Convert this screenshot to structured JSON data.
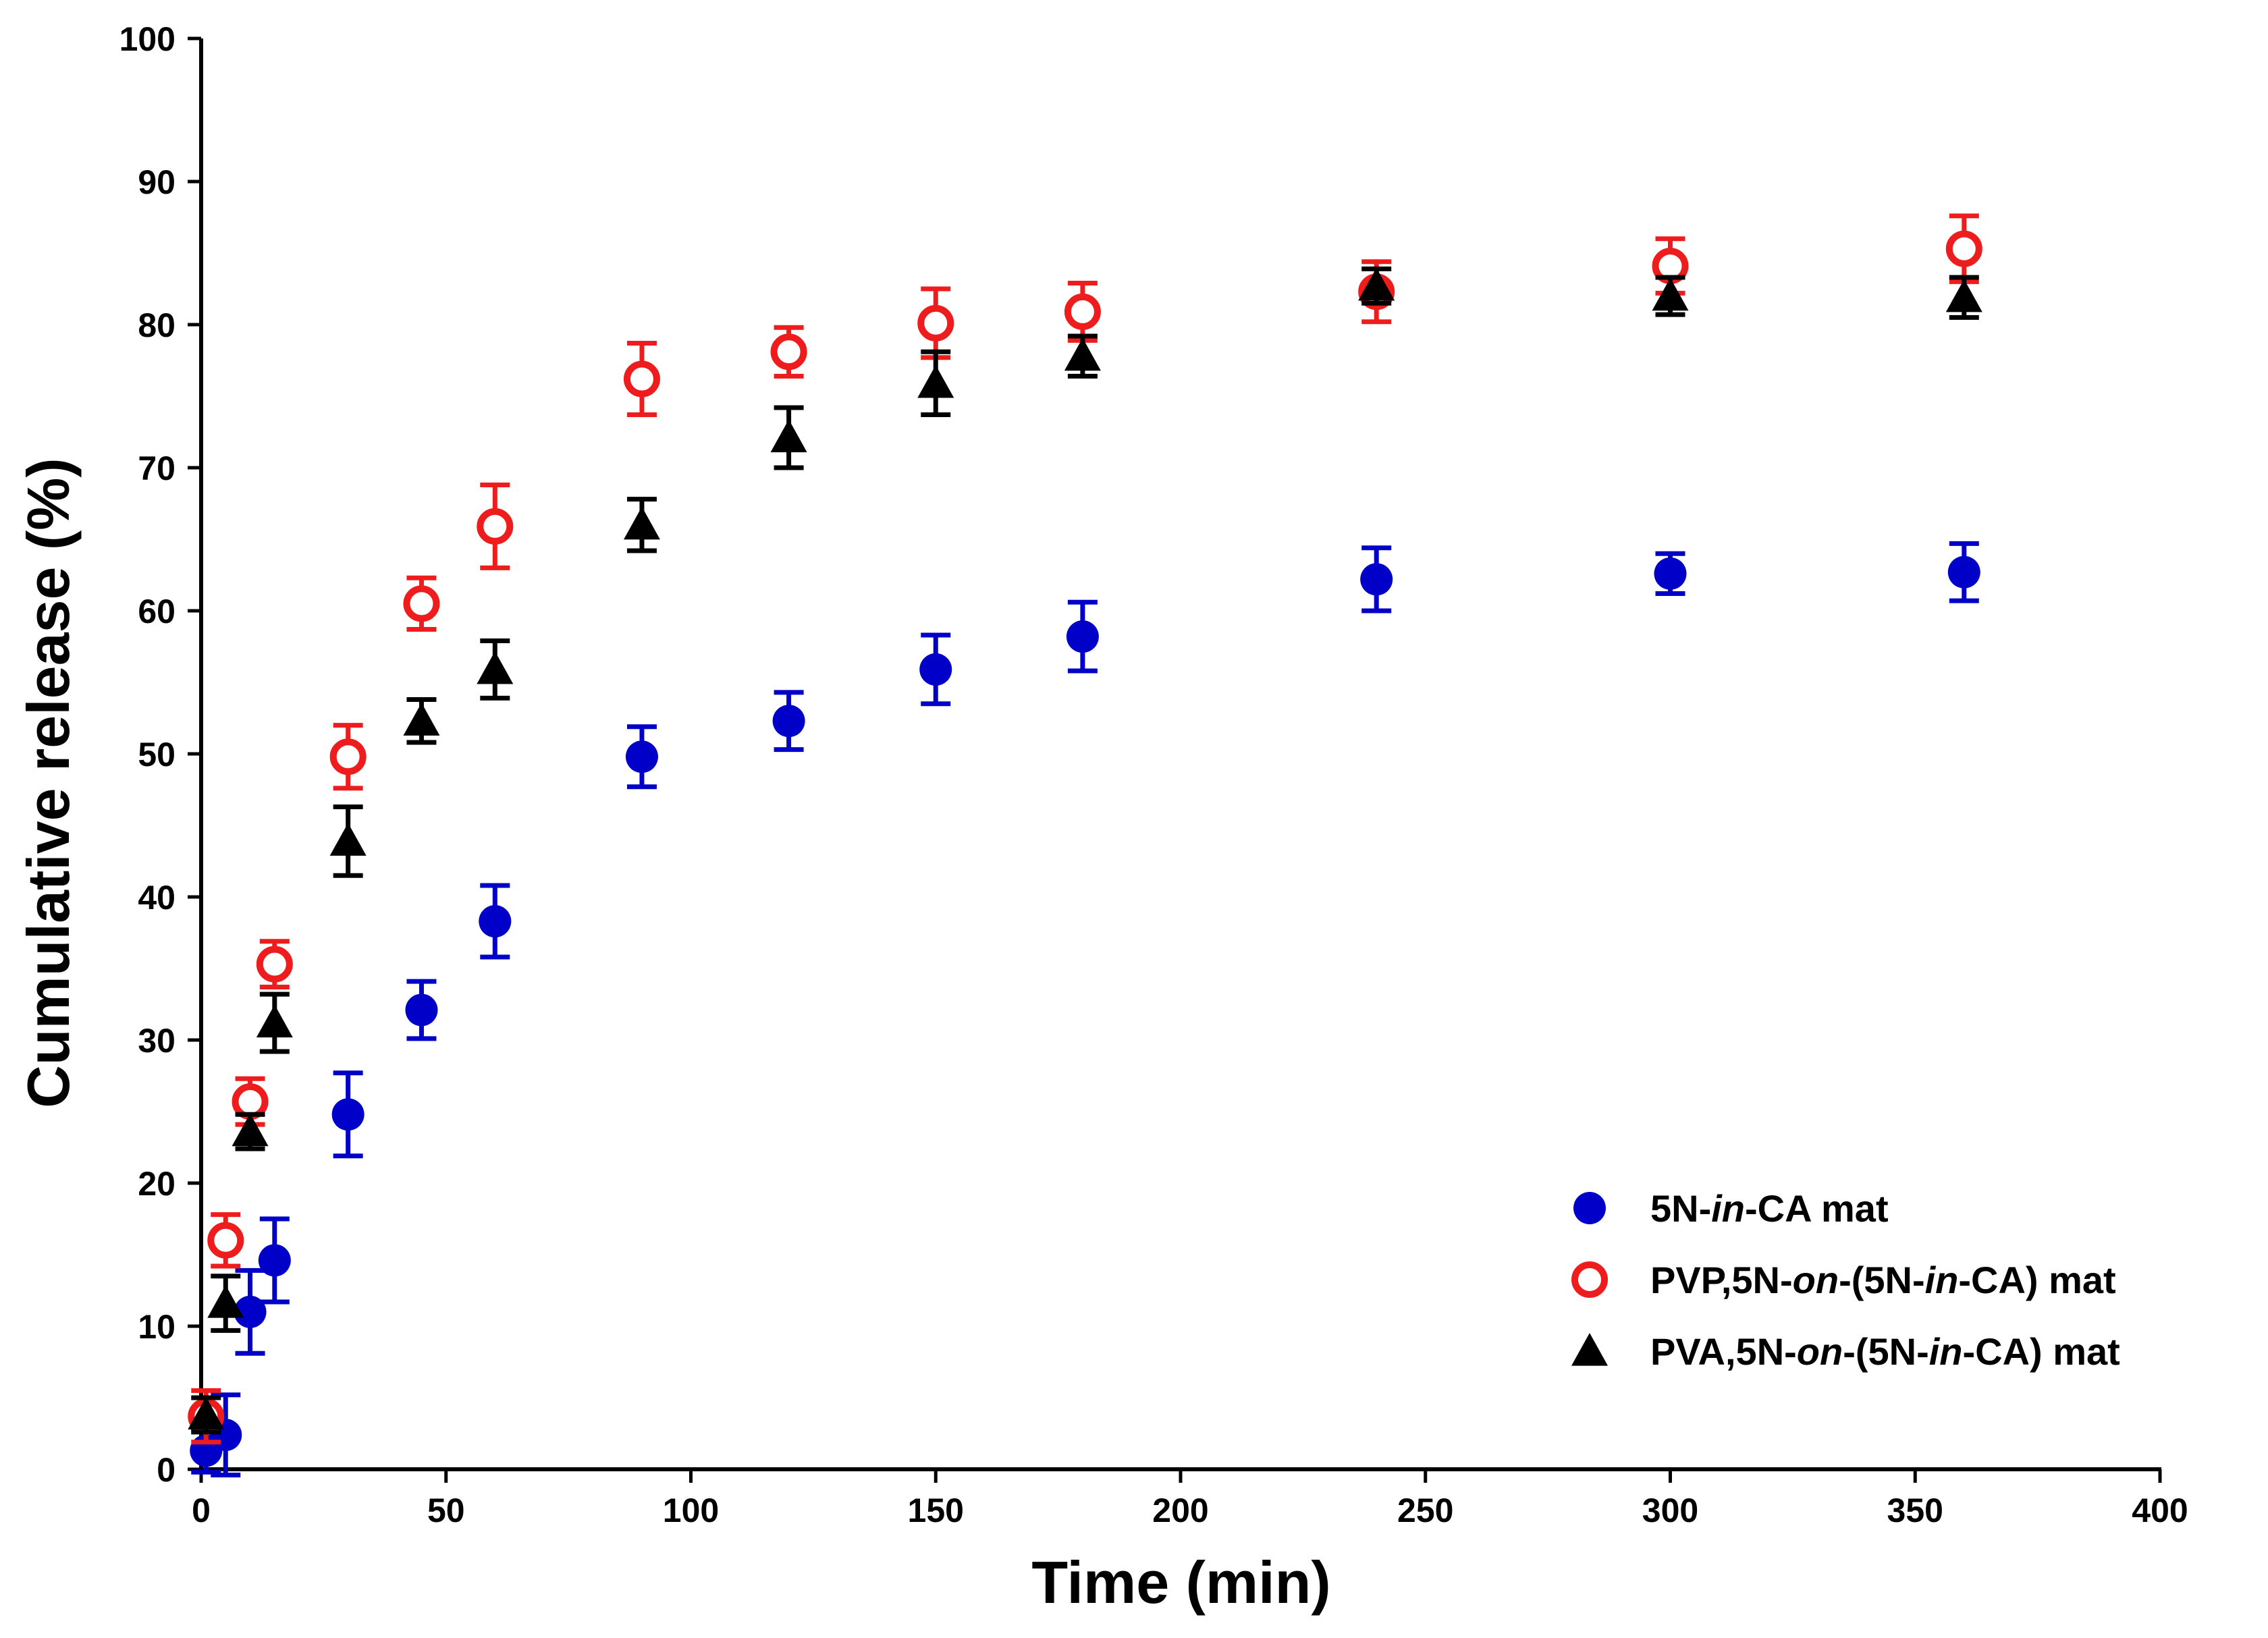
{
  "chart_data": {
    "type": "scatter",
    "title": "",
    "xlabel": "Time (min)",
    "ylabel": "Cumulative release (%)",
    "xlim": [
      0,
      400
    ],
    "ylim": [
      0,
      100
    ],
    "xticks": [
      0,
      50,
      100,
      150,
      200,
      250,
      300,
      350,
      400
    ],
    "yticks": [
      0,
      10,
      20,
      30,
      40,
      50,
      60,
      70,
      80,
      90,
      100
    ],
    "grid": false,
    "legend_position": "bottom-right",
    "series": [
      {
        "name": "5N-in-CA mat",
        "legend_parts": [
          {
            "text": "5N-",
            "italic": false
          },
          {
            "text": "in",
            "italic": true
          },
          {
            "text": "-CA mat",
            "italic": false
          }
        ],
        "marker": "circle-filled",
        "color": "#0000C8",
        "x": [
          1,
          5,
          10,
          15,
          30,
          45,
          60,
          90,
          120,
          150,
          180,
          240,
          300,
          360
        ],
        "y": [
          1.3,
          2.4,
          11.0,
          14.6,
          24.8,
          32.1,
          38.3,
          49.8,
          52.3,
          55.9,
          58.2,
          62.2,
          62.6,
          62.7
        ],
        "err": [
          1.5,
          2.8,
          2.9,
          2.9,
          2.9,
          2.0,
          2.5,
          2.1,
          2.0,
          2.4,
          2.4,
          2.2,
          1.4,
          2.0
        ]
      },
      {
        "name": "PVP,5N-on-(5N-in-CA) mat",
        "legend_parts": [
          {
            "text": "PVP,5N-",
            "italic": false
          },
          {
            "text": "on",
            "italic": true
          },
          {
            "text": "-(5N-",
            "italic": false
          },
          {
            "text": "in",
            "italic": true
          },
          {
            "text": "-CA) mat",
            "italic": false
          }
        ],
        "marker": "circle-open",
        "color": "#EE1C1C",
        "x": [
          1,
          5,
          10,
          15,
          30,
          45,
          60,
          90,
          120,
          150,
          180,
          240,
          300,
          360
        ],
        "y": [
          3.7,
          16.0,
          25.7,
          35.3,
          49.8,
          60.5,
          65.9,
          76.2,
          78.1,
          80.1,
          80.9,
          82.3,
          84.1,
          85.3
        ],
        "err": [
          1.8,
          1.8,
          1.6,
          1.6,
          2.2,
          1.8,
          2.9,
          2.5,
          1.7,
          2.4,
          2.0,
          2.1,
          1.9,
          2.3
        ]
      },
      {
        "name": "PVA,5N-on-(5N-in-CA) mat",
        "legend_parts": [
          {
            "text": "PVA,5N-",
            "italic": false
          },
          {
            "text": "on",
            "italic": true
          },
          {
            "text": "-(5N-",
            "italic": false
          },
          {
            "text": "in",
            "italic": true
          },
          {
            "text": "-CA) mat",
            "italic": false
          }
        ],
        "marker": "triangle-filled",
        "color": "#000000",
        "x": [
          1,
          5,
          10,
          15,
          30,
          45,
          60,
          90,
          120,
          150,
          180,
          240,
          300,
          360
        ],
        "y": [
          3.8,
          11.6,
          23.6,
          31.2,
          43.9,
          52.3,
          55.9,
          66.0,
          72.1,
          75.9,
          77.8,
          82.7,
          82.0,
          81.9
        ],
        "err": [
          1.2,
          1.9,
          1.2,
          2.0,
          2.4,
          1.5,
          2.0,
          1.8,
          2.1,
          2.2,
          1.4,
          1.2,
          1.3,
          1.4
        ]
      }
    ]
  }
}
